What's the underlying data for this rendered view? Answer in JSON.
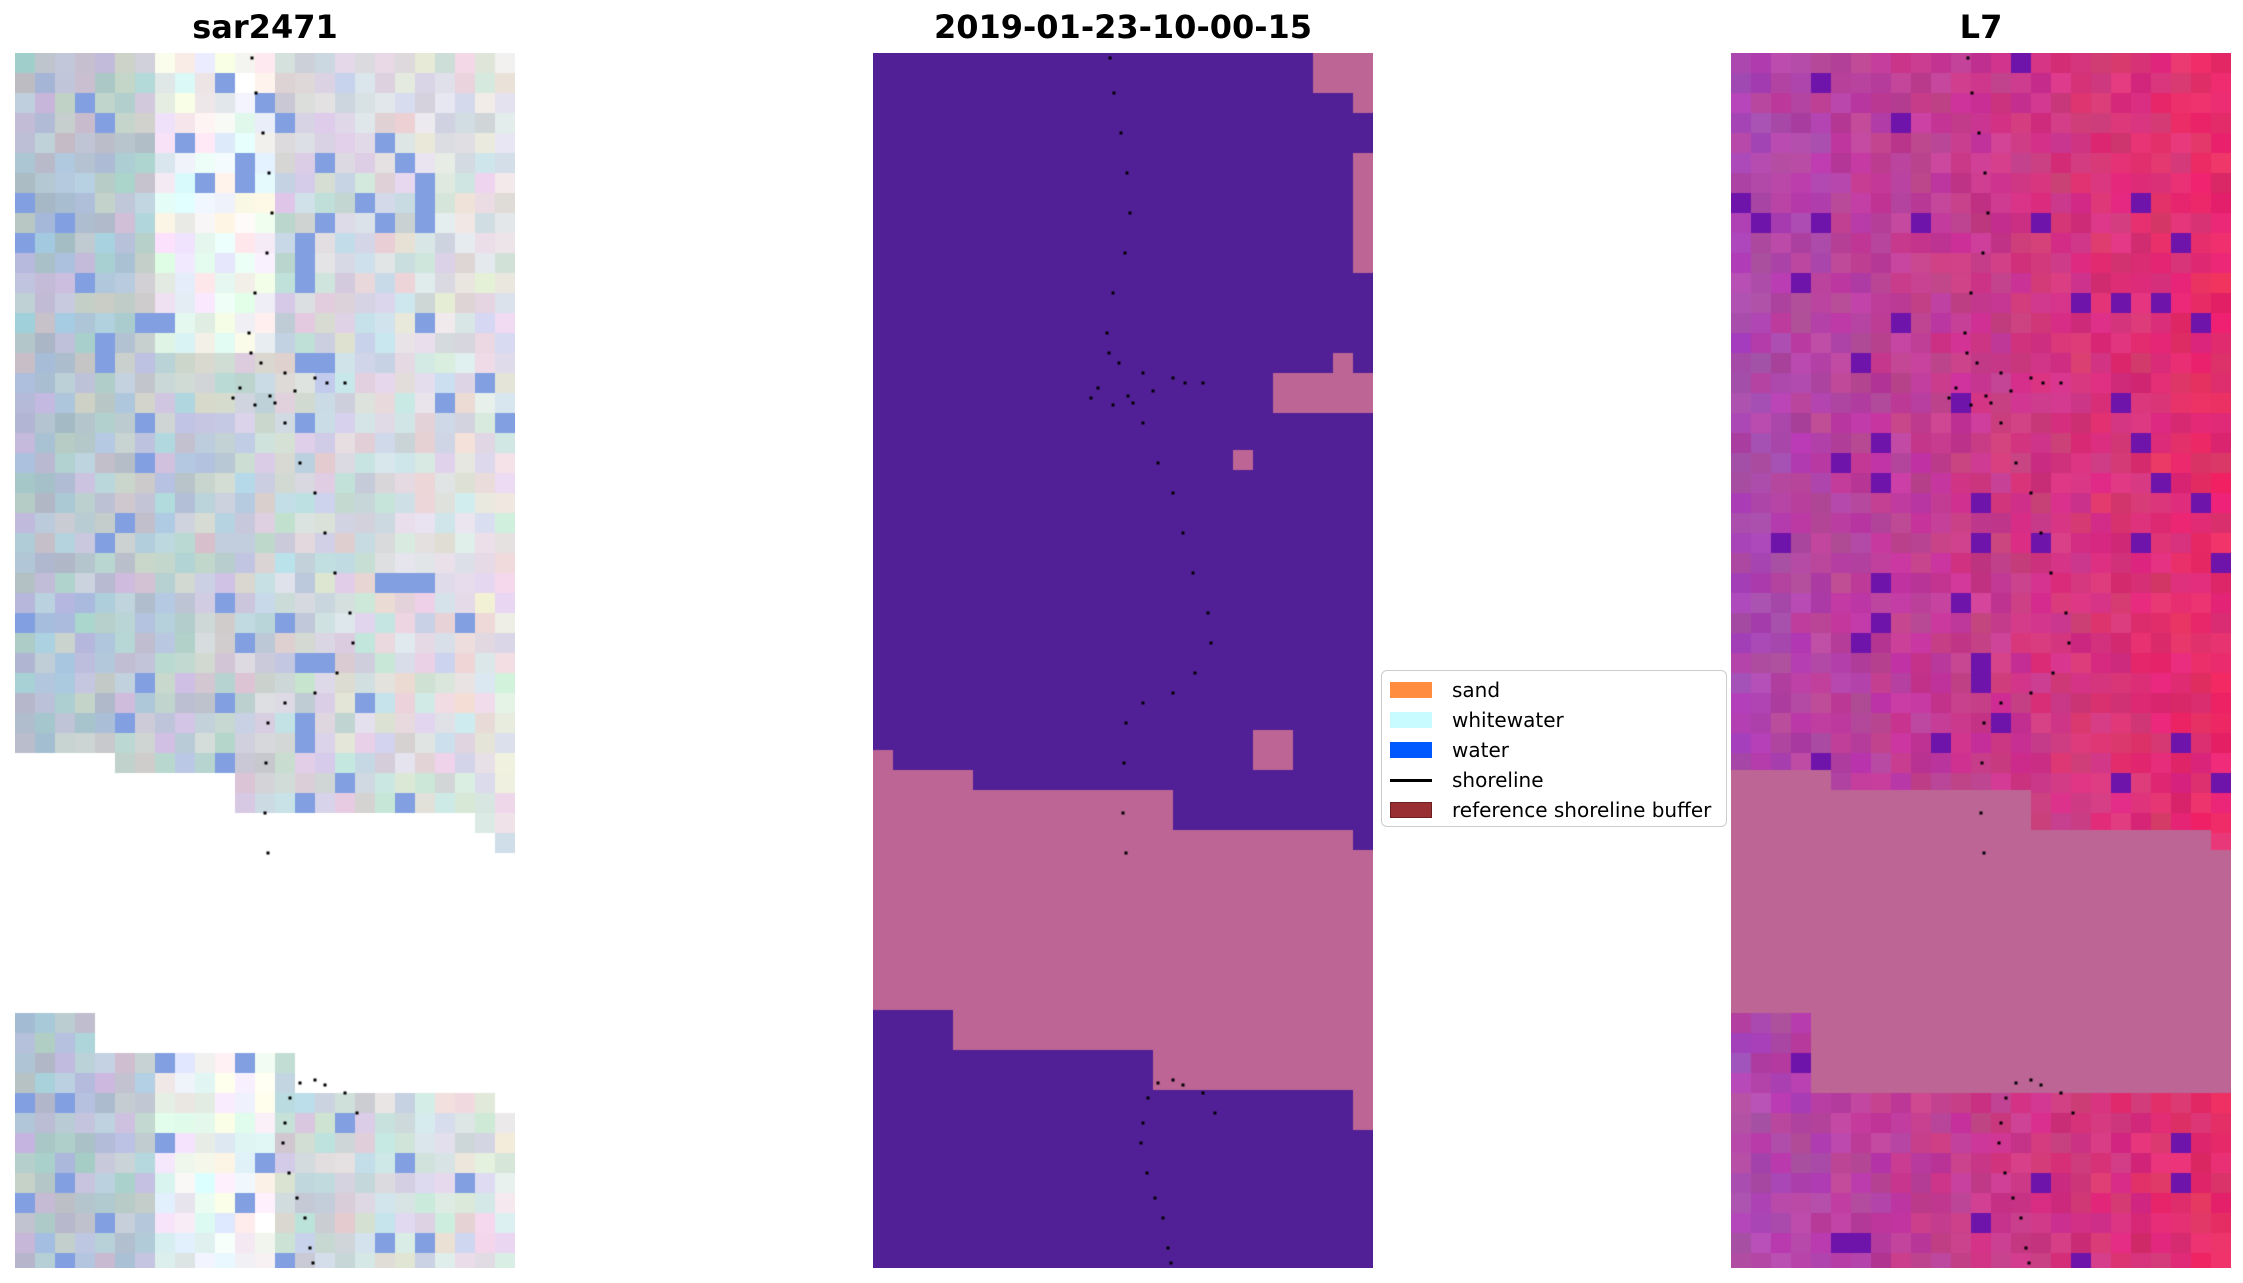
{
  "panels": [
    {
      "id": "rgb",
      "title": "sar2471"
    },
    {
      "id": "class",
      "title": "2019-01-23-10-00-15"
    },
    {
      "id": "index",
      "title": "L7"
    }
  ],
  "legend": {
    "items": [
      {
        "label": "sand",
        "color": "#ff8c3f",
        "kind": "patch"
      },
      {
        "label": "whitewater",
        "color": "#c8fbff",
        "kind": "patch"
      },
      {
        "label": "water",
        "color": "#0059ff",
        "kind": "patch"
      },
      {
        "label": "shoreline",
        "color": "#000000",
        "kind": "line"
      },
      {
        "label": "reference shoreline buffer",
        "color": "#9a2f33",
        "kind": "patch"
      }
    ]
  },
  "colors": {
    "class_water_background": "#522096",
    "class_buffer_pink": "#bd6594",
    "index_band_pink": "#bd6594"
  }
}
